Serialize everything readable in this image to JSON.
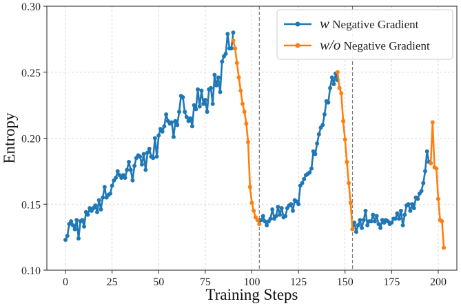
{
  "chart_data": {
    "type": "line",
    "xlabel": "Training Steps",
    "ylabel": "Entropy",
    "xlim": [
      -10,
      210
    ],
    "ylim": [
      0.1,
      0.3
    ],
    "xticks": [
      "0",
      "25",
      "50",
      "75",
      "100",
      "125",
      "150",
      "175",
      "200"
    ],
    "xtick_values": [
      0,
      25,
      50,
      75,
      100,
      125,
      150,
      175,
      200
    ],
    "yticks": [
      "0.10",
      "0.15",
      "0.20",
      "0.25",
      "0.30"
    ],
    "ytick_values": [
      0.1,
      0.15,
      0.2,
      0.25,
      0.3
    ],
    "grid": true,
    "legend_position": "top-right",
    "vlines": [
      104,
      154
    ],
    "series": [
      {
        "name_symbol": "w",
        "name_text": "Negative Gradient",
        "color": "#1f77b4",
        "segments": [
          {
            "x": [
              0,
              1,
              2,
              3,
              4,
              5,
              6,
              7,
              8,
              9,
              10,
              11,
              12,
              13,
              14,
              15,
              16,
              17,
              18,
              19,
              20,
              21,
              22,
              23,
              24,
              25,
              26,
              27,
              28,
              29,
              30,
              31,
              32,
              33,
              34,
              35,
              36,
              37,
              38,
              39,
              40,
              41,
              42,
              43,
              44,
              45,
              46,
              47,
              48,
              49,
              50,
              51,
              52,
              53,
              54,
              55,
              56,
              57,
              58,
              59,
              60,
              61,
              62,
              63,
              64,
              65,
              66,
              67,
              68,
              69,
              70,
              71,
              72,
              73,
              74,
              75,
              76,
              77,
              78,
              79,
              80,
              81,
              82,
              83,
              84,
              85,
              86,
              87,
              88,
              89,
              90
            ],
            "y": [
              0.123,
              0.126,
              0.135,
              0.137,
              0.134,
              0.131,
              0.138,
              0.124,
              0.137,
              0.138,
              0.133,
              0.144,
              0.142,
              0.147,
              0.145,
              0.147,
              0.149,
              0.144,
              0.153,
              0.146,
              0.155,
              0.163,
              0.155,
              0.157,
              0.158,
              0.164,
              0.168,
              0.17,
              0.175,
              0.172,
              0.17,
              0.172,
              0.17,
              0.176,
              0.182,
              0.176,
              0.168,
              0.179,
              0.185,
              0.187,
              0.186,
              0.18,
              0.188,
              0.176,
              0.189,
              0.192,
              0.186,
              0.185,
              0.2,
              0.186,
              0.202,
              0.207,
              0.205,
              0.209,
              0.218,
              0.213,
              0.211,
              0.212,
              0.201,
              0.213,
              0.21,
              0.22,
              0.232,
              0.231,
              0.22,
              0.216,
              0.213,
              0.215,
              0.209,
              0.225,
              0.222,
              0.237,
              0.224,
              0.236,
              0.226,
              0.229,
              0.22,
              0.237,
              0.238,
              0.226,
              0.248,
              0.24,
              0.246,
              0.235,
              0.258,
              0.262,
              0.264,
              0.279,
              0.268,
              0.268,
              0.28
            ]
          },
          {
            "x": [
              104,
              105,
              106,
              107,
              108,
              109,
              110,
              111,
              112,
              113,
              114,
              115,
              116,
              117,
              118,
              119,
              120,
              121,
              122,
              123,
              124,
              125,
              126,
              127,
              128,
              129,
              130,
              131,
              132,
              133,
              134,
              135,
              136,
              137,
              138,
              139,
              140,
              141,
              142,
              143,
              144,
              145,
              146
            ],
            "y": [
              0.135,
              0.138,
              0.141,
              0.137,
              0.134,
              0.137,
              0.139,
              0.146,
              0.139,
              0.141,
              0.148,
              0.142,
              0.147,
              0.14,
              0.141,
              0.147,
              0.149,
              0.15,
              0.145,
              0.153,
              0.152,
              0.15,
              0.164,
              0.166,
              0.169,
              0.172,
              0.173,
              0.174,
              0.177,
              0.19,
              0.188,
              0.196,
              0.203,
              0.208,
              0.21,
              0.218,
              0.228,
              0.227,
              0.238,
              0.246,
              0.241,
              0.249,
              0.244
            ]
          },
          {
            "x": [
              154,
              155,
              156,
              157,
              158,
              159,
              160,
              161,
              162,
              163,
              164,
              165,
              166,
              167,
              168,
              169,
              170,
              171,
              172,
              173,
              174,
              175,
              176,
              177,
              178,
              179,
              180,
              181,
              182,
              183,
              184,
              185,
              186,
              187,
              188,
              189,
              190,
              191,
              192,
              193,
              194,
              195,
              196
            ],
            "y": [
              0.131,
              0.136,
              0.129,
              0.134,
              0.138,
              0.132,
              0.138,
              0.145,
              0.134,
              0.137,
              0.137,
              0.142,
              0.137,
              0.141,
              0.135,
              0.132,
              0.138,
              0.136,
              0.138,
              0.137,
              0.135,
              0.136,
              0.139,
              0.139,
              0.143,
              0.139,
              0.145,
              0.134,
              0.142,
              0.149,
              0.15,
              0.145,
              0.15,
              0.147,
              0.155,
              0.154,
              0.158,
              0.16,
              0.166,
              0.175,
              0.19,
              0.182,
              0.181
            ]
          }
        ]
      },
      {
        "name_symbol": "w/o",
        "name_text": "Negative Gradient",
        "color": "#ff7f0e",
        "segments": [
          {
            "x": [
              90,
              91,
              92,
              93,
              94,
              95,
              96,
              97,
              98,
              99,
              100,
              101,
              102,
              103,
              104
            ],
            "y": [
              0.274,
              0.268,
              0.257,
              0.246,
              0.236,
              0.226,
              0.22,
              0.211,
              0.197,
              0.163,
              0.151,
              0.145,
              0.14,
              0.138,
              0.135
            ]
          },
          {
            "x": [
              146,
              147,
              148,
              149,
              150,
              151,
              152,
              153,
              154
            ],
            "y": [
              0.25,
              0.238,
              0.234,
              0.213,
              0.199,
              0.182,
              0.166,
              0.151,
              0.131
            ]
          },
          {
            "x": [
              196,
              197,
              198,
              199,
              200,
              201,
              202,
              203
            ],
            "y": [
              0.181,
              0.212,
              0.178,
              0.177,
              0.154,
              0.138,
              0.137,
              0.117
            ]
          }
        ]
      }
    ]
  }
}
